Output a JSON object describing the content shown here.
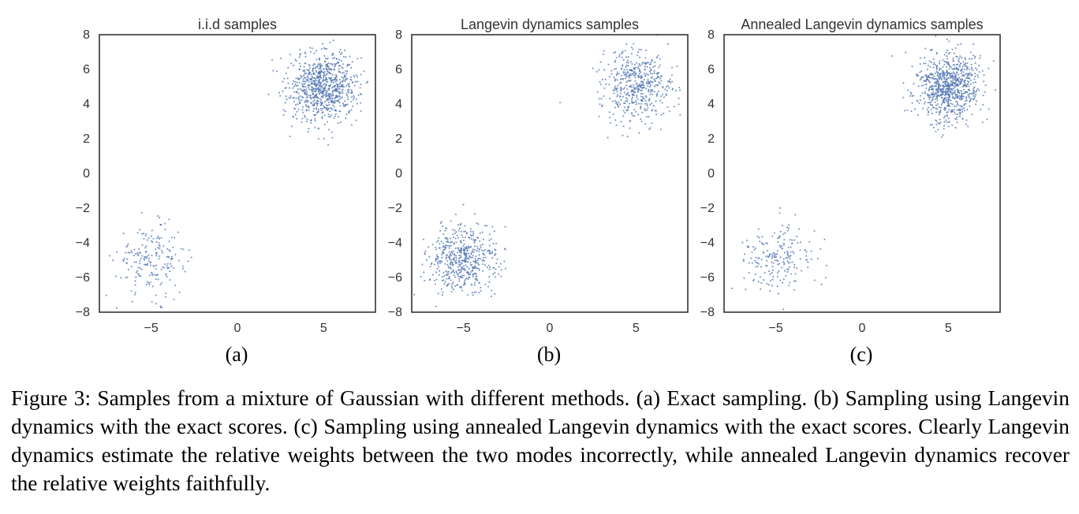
{
  "chart_data": [
    {
      "type": "scatter",
      "panel_label": "(a)",
      "title": "i.i.d samples",
      "xlim": [
        -8,
        8
      ],
      "ylim": [
        -8,
        8
      ],
      "xticks": [
        -5,
        0,
        5
      ],
      "yticks": [
        -8,
        -6,
        -4,
        -2,
        0,
        2,
        4,
        6,
        8
      ],
      "grid": false,
      "marker_color": "#4c72b0",
      "clusters": [
        {
          "center": [
            -5,
            -5
          ],
          "std": 1.0,
          "n_points": 200
        },
        {
          "center": [
            5,
            5
          ],
          "std": 1.0,
          "n_points": 800
        }
      ]
    },
    {
      "type": "scatter",
      "panel_label": "(b)",
      "title": "Langevin dynamics samples",
      "xlim": [
        -8,
        8
      ],
      "ylim": [
        -8,
        8
      ],
      "xticks": [
        -5,
        0,
        5
      ],
      "yticks": [
        -8,
        -6,
        -4,
        -2,
        0,
        2,
        4,
        6,
        8
      ],
      "grid": false,
      "marker_color": "#4c72b0",
      "clusters": [
        {
          "center": [
            -5,
            -5
          ],
          "std": 1.0,
          "n_points": 520
        },
        {
          "center": [
            5,
            5
          ],
          "std": 1.0,
          "n_points": 480
        }
      ]
    },
    {
      "type": "scatter",
      "panel_label": "(c)",
      "title": "Annealed Langevin dynamics samples",
      "xlim": [
        -8,
        8
      ],
      "ylim": [
        -8,
        8
      ],
      "xticks": [
        -5,
        0,
        5
      ],
      "yticks": [
        -8,
        -6,
        -4,
        -2,
        0,
        2,
        4,
        6,
        8
      ],
      "grid": false,
      "marker_color": "#4c72b0",
      "clusters": [
        {
          "center": [
            -5,
            -5
          ],
          "std": 1.0,
          "n_points": 200
        },
        {
          "center": [
            5,
            5
          ],
          "std": 1.0,
          "n_points": 800
        }
      ]
    }
  ],
  "caption": "Figure 3: Samples from a mixture of Gaussian with different methods. (a) Exact sampling. (b) Sampling using Langevin dynamics with the exact scores. (c) Sampling using annealed Langevin dynamics with the exact scores. Clearly Langevin dynamics estimate the relative weights between the two modes incorrectly, while annealed Langevin dynamics recover the relative weights faithfully."
}
